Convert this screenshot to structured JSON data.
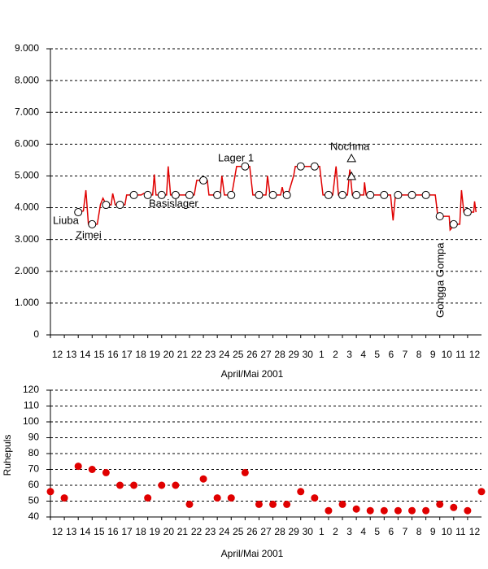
{
  "chart_data": [
    {
      "type": "line",
      "categories": [
        "12",
        "13",
        "14",
        "15",
        "16",
        "17",
        "18",
        "19",
        "20",
        "21",
        "22",
        "23",
        "24",
        "25",
        "26",
        "27",
        "28",
        "29",
        "30",
        "1",
        "2",
        "3",
        "4",
        "5",
        "6",
        "7",
        "8",
        "9",
        "10",
        "11",
        "12"
      ],
      "xlabel": "April/Mai 2001",
      "xlim": [
        -0.5,
        30.5
      ],
      "ylim": [
        0,
        9000
      ],
      "yticks": [
        0,
        {
          "value": 1000,
          "label": "1.000"
        },
        {
          "value": 2000,
          "label": "2.000"
        },
        {
          "value": 3000,
          "label": "3.000"
        },
        {
          "value": 4000,
          "label": "4.000"
        },
        {
          "value": 5000,
          "label": "5.000"
        },
        {
          "value": 6000,
          "label": "6.000"
        },
        {
          "value": 7000,
          "label": "7.000"
        },
        {
          "value": 8000,
          "label": "8.000"
        },
        {
          "value": 9000,
          "label": "9.000"
        }
      ],
      "grid": true,
      "profile": {
        "color": "#e00000",
        "x": [
          1.52,
          1.87,
          2.05,
          2.23,
          2.52,
          2.87,
          3.1,
          3.28,
          3.51,
          3.87,
          3.98,
          4.16,
          4.51,
          4.86,
          4.98,
          5.51,
          6.03,
          6.21,
          6.56,
          6.85,
          6.97,
          7.09,
          7.56,
          7.85,
          7.97,
          8.14,
          8.55,
          9.55,
          9.84,
          10.02,
          10.54,
          10.78,
          10.9,
          11.54,
          11.72,
          11.83,
          12.01,
          12.54,
          12.89,
          13.53,
          13.83,
          14.06,
          14.53,
          15.0,
          15.11,
          15.29,
          15.58,
          16.05,
          16.17,
          16.29,
          16.58,
          16.99,
          17.11,
          17.58,
          18.57,
          18.86,
          19.1,
          19.57,
          19.8,
          20.04,
          20.21,
          20.56,
          20.86,
          21.03,
          21.21,
          21.62,
          22.03,
          22.09,
          22.2,
          22.61,
          23.61,
          23.96,
          24.14,
          24.31,
          24.6,
          25.6,
          26.6,
          27.18,
          27.36,
          27.59,
          28.0,
          28.18,
          28.24,
          28.59,
          28.94,
          29.06,
          29.23,
          29.58,
          29.94,
          30.0,
          30.11
        ],
        "values": [
          3860,
          3900,
          4550,
          3480,
          3480,
          3480,
          4100,
          4300,
          4090,
          4090,
          4450,
          4090,
          4090,
          4090,
          4400,
          4400,
          4400,
          4450,
          4400,
          4400,
          5050,
          4400,
          4400,
          4400,
          5300,
          4400,
          4400,
          4400,
          4400,
          4860,
          4860,
          4860,
          4400,
          4400,
          4400,
          5000,
          4400,
          4400,
          5300,
          5300,
          5300,
          4400,
          4400,
          4400,
          5000,
          4400,
          4400,
          4400,
          4650,
          4400,
          4400,
          5000,
          5300,
          5300,
          5300,
          5300,
          4400,
          4400,
          4400,
          5300,
          4400,
          4400,
          4400,
          5200,
          4400,
          4400,
          4400,
          4800,
          4400,
          4400,
          4400,
          4400,
          3600,
          4400,
          4400,
          4400,
          4400,
          4400,
          3730,
          3730,
          3730,
          3730,
          3300,
          3480,
          3480,
          4550,
          3860,
          3860,
          3860,
          4200,
          3860
        ]
      },
      "camps": {
        "color": "#ffffff",
        "x": [
          1.5,
          2.5,
          3.5,
          4.5,
          5.5,
          6.5,
          7.5,
          8.5,
          9.5,
          10.5,
          11.5,
          12.5,
          13.5,
          14.5,
          15.5,
          16.5,
          17.5,
          18.5,
          19.5,
          20.5,
          21.5,
          22.5,
          23.5,
          24.5,
          25.5,
          26.5,
          27.5,
          28.5,
          29.5
        ],
        "values": [
          3860,
          3480,
          4090,
          4090,
          4400,
          4400,
          4400,
          4400,
          4400,
          4860,
          4400,
          4400,
          5300,
          4400,
          4400,
          4400,
          5300,
          5300,
          4400,
          4400,
          4400,
          4400,
          4400,
          4400,
          4400,
          4400,
          3730,
          3480,
          3860
        ]
      },
      "peaks": {
        "x": [
          21.15,
          21.15
        ],
        "values": [
          5550,
          4990
        ]
      },
      "annotations": [
        "Liuba",
        "Zimei",
        "Basislager",
        "Lager 1",
        "Nochma",
        "Gongga Gompa"
      ]
    },
    {
      "type": "scatter",
      "categories": [
        "12",
        "13",
        "14",
        "15",
        "16",
        "17",
        "18",
        "19",
        "20",
        "21",
        "22",
        "23",
        "24",
        "25",
        "26",
        "27",
        "28",
        "29",
        "30",
        "1",
        "2",
        "3",
        "4",
        "5",
        "6",
        "7",
        "8",
        "9",
        "10",
        "11",
        "12"
      ],
      "xlabel": "April/Mai 2001",
      "ylabel": "Ruhepuls",
      "xlim": [
        -0.5,
        30.5
      ],
      "ylim": [
        40,
        120
      ],
      "yticks": [
        40,
        50,
        60,
        70,
        80,
        90,
        100,
        110,
        120
      ],
      "grid": true,
      "color": "#e00000",
      "x": [
        -0.5,
        0.5,
        1.5,
        2.5,
        3.5,
        4.5,
        5.5,
        6.5,
        7.5,
        8.5,
        9.5,
        10.5,
        11.5,
        12.5,
        13.5,
        14.5,
        15.5,
        16.5,
        17.5,
        18.5,
        19.5,
        20.5,
        21.5,
        22.5,
        23.5,
        24.5,
        25.5,
        26.5,
        27.5,
        28.5,
        29.5,
        30.5
      ],
      "values": [
        56,
        52,
        72,
        70,
        68,
        60,
        60,
        52,
        60,
        60,
        48,
        64,
        52,
        52,
        68,
        48,
        48,
        48,
        56,
        52,
        44,
        48,
        45,
        44,
        44,
        44,
        44,
        44,
        48,
        46,
        44,
        56
      ]
    }
  ]
}
